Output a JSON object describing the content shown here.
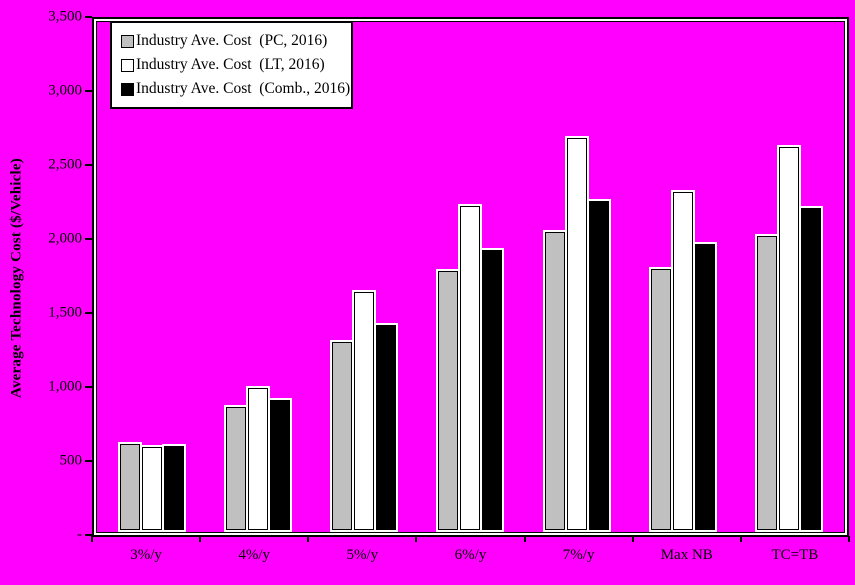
{
  "colors": {
    "background": "#FF00FF",
    "plot_border": "#000000",
    "highlight": "#FFFFFF",
    "text": "#000000",
    "legend_background": "#FFFFFF",
    "series_pc": "#C0C0C0",
    "series_lt": "#FFFFFF",
    "series_comb": "#000000"
  },
  "y_axis": {
    "title": "Average Technology Cost ($/Vehicle)",
    "min": 0,
    "max": 3500,
    "step": 500,
    "tick_labels": [
      "-",
      "500",
      "1,000",
      "1,500",
      "2,000",
      "2,500",
      "3,000",
      "3,500"
    ]
  },
  "x_axis": {
    "categories": [
      "3%/y",
      "4%/y",
      "5%/y",
      "6%/y",
      "7%/y",
      "Max NB",
      "TC=TB"
    ]
  },
  "legend": {
    "position": "top-left",
    "items": [
      {
        "label": "Industry Ave. Cost  (PC, 2016)",
        "color": "#C0C0C0"
      },
      {
        "label": "Industry Ave. Cost  (LT, 2016)",
        "color": "#FFFFFF"
      },
      {
        "label": "Industry Ave. Cost  (Comb., 2016)",
        "color": "#000000"
      }
    ]
  },
  "chart_data": {
    "type": "bar",
    "title": "",
    "xlabel": "",
    "ylabel": "Average Technology Cost ($/Vehicle)",
    "ylim": [
      0,
      3500
    ],
    "grid": false,
    "legend_position": "top-left",
    "categories": [
      "3%/y",
      "4%/y",
      "5%/y",
      "6%/y",
      "7%/y",
      "Max NB",
      "TC=TB"
    ],
    "series": [
      {
        "name": "Industry Ave. Cost  (PC, 2016)",
        "color": "#C0C0C0",
        "values": [
          590,
          845,
          1290,
          1775,
          2045,
          1790,
          2020
        ]
      },
      {
        "name": "Industry Ave. Cost  (LT, 2016)",
        "color": "#FFFFFF",
        "values": [
          570,
          975,
          1635,
          2225,
          2690,
          2320,
          2630
        ]
      },
      {
        "name": "Industry Ave. Cost  (Comb., 2016)",
        "color": "#000000",
        "values": [
          575,
          890,
          1405,
          1920,
          2255,
          1960,
          2210
        ]
      }
    ]
  }
}
